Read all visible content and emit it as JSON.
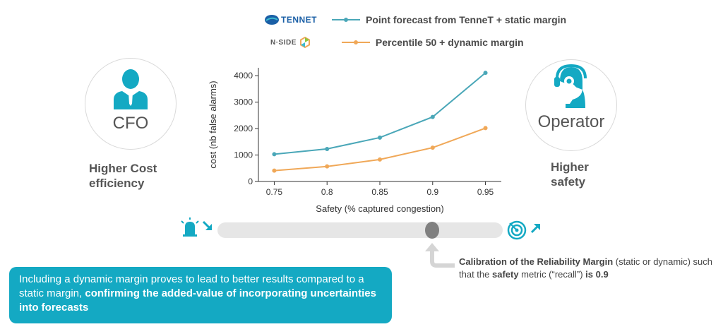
{
  "legend": {
    "tennet_logo": "TENNET",
    "nside_logo": "N·SIDE",
    "series1_label": "Point forecast from TenneT + static margin",
    "series2_label": "Percentile 50 + dynamic margin"
  },
  "left_persona": {
    "icon": "person-icon",
    "label": "CFO",
    "title_line1": "Higher Cost",
    "title_line2": "efficiency"
  },
  "right_persona": {
    "icon": "headset-operator-icon",
    "label": "Operator",
    "title_line1": "Higher",
    "title_line2": "safety"
  },
  "slider": {
    "left_icon": "siren-icon",
    "right_icon": "target-icon",
    "position": 0.9
  },
  "calibration": {
    "part1": "Calibration of the Reliability Margin",
    "part2": " (static or dynamic) such that the ",
    "part3": "safety",
    "part4": " metric (“recall”) ",
    "part5": "is 0.9"
  },
  "callout": {
    "part1": "Including a dynamic margin proves to lead to better results compared to a static margin, ",
    "part2": "confirming the added-value of incorporating uncertainties into forecasts"
  },
  "colors": {
    "series1": "#4aa7b8",
    "series2": "#f0a858",
    "accent": "#14a9c3"
  },
  "chart_data": {
    "type": "line",
    "x": [
      0.75,
      0.8,
      0.85,
      0.9,
      0.95
    ],
    "x_tick_labels": [
      "0.75",
      "0.8",
      "0.85",
      "0.9",
      "0.95"
    ],
    "xlim": [
      0.735,
      0.965
    ],
    "ylim": [
      0,
      4300
    ],
    "y_ticks": [
      0,
      1000,
      2000,
      3000,
      4000
    ],
    "y_tick_labels": [
      "0",
      "1000",
      "2000",
      "3000",
      "4000"
    ],
    "xlabel": "Safety (% captured congestion)",
    "ylabel": "cost (nb false alarms)",
    "grid": false,
    "series": [
      {
        "name": "Point forecast from TenneT + static margin",
        "values": [
          1030,
          1230,
          1660,
          2440,
          4110
        ]
      },
      {
        "name": "Percentile 50 + dynamic margin",
        "values": [
          410,
          570,
          830,
          1280,
          2020
        ]
      }
    ]
  }
}
